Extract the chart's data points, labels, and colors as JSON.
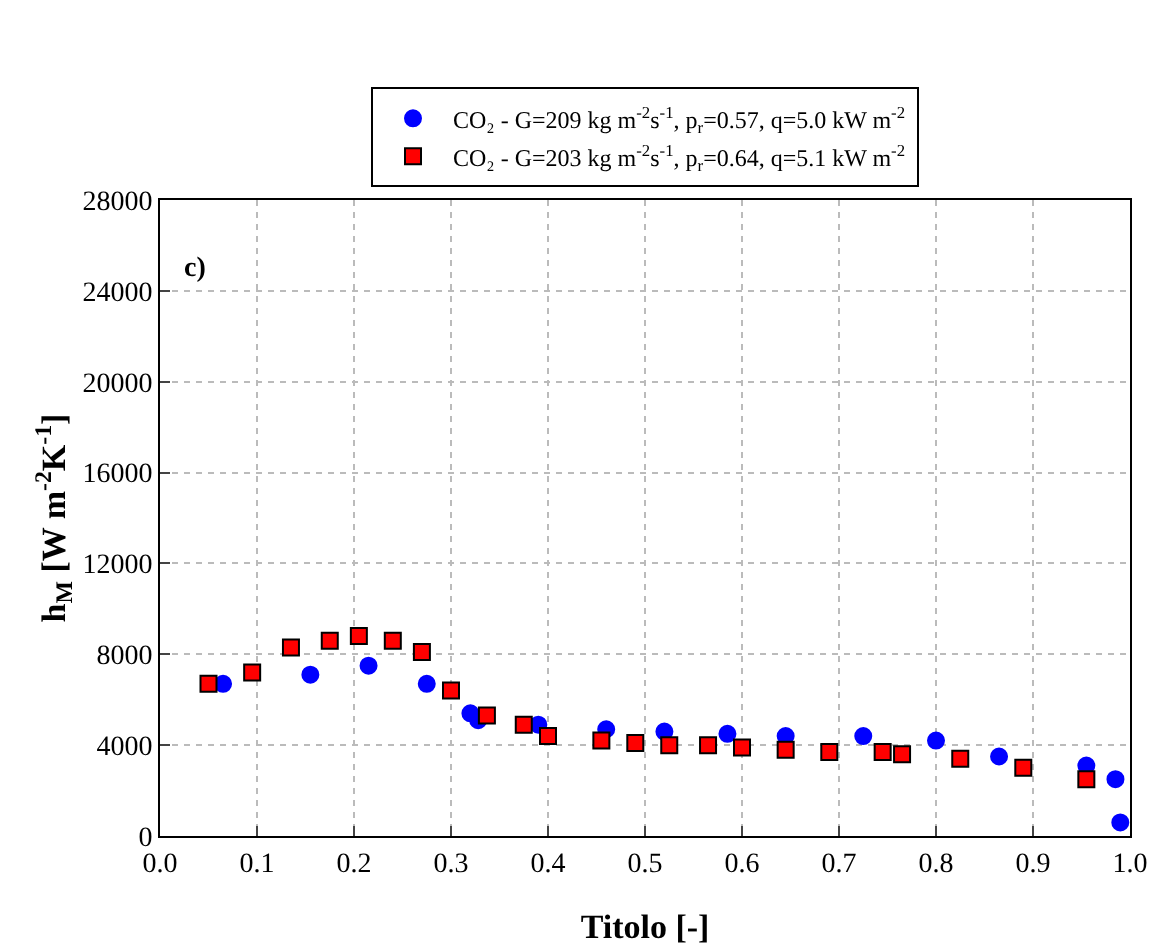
{
  "chart_data": {
    "type": "scatter",
    "xlabel": "Titolo [-]",
    "ylabel": "h$_{M}$ [W m$^{-2}$K$^{-1}$]",
    "annotations": [
      "c)"
    ],
    "series": [
      {
        "name": "CO₂ - G=209 kg m$^{-2}$s$^{-1}$, p$_{r}$=0.57, q=5.0 kW m$^{-2}$",
        "color": "#0000ff",
        "marker": "circle",
        "x": [
          0.065,
          0.155,
          0.215,
          0.275,
          0.32,
          0.328,
          0.39,
          0.46,
          0.52,
          0.585,
          0.645,
          0.725,
          0.8,
          0.865,
          0.955,
          0.985,
          0.99
        ],
        "values": [
          6700,
          7100,
          7500,
          6700,
          5400,
          5100,
          4900,
          4700,
          4600,
          4500,
          4400,
          4400,
          4200,
          3500,
          3100,
          2500,
          600
        ]
      },
      {
        "name": "CO₂ - G=203 kg m$^{-2}$s$^{-1}$, p$_{r}$=0.64, q=5.1 kW m$^{-2}$",
        "color": "#ff0000",
        "marker": "square",
        "x": [
          0.05,
          0.095,
          0.135,
          0.175,
          0.205,
          0.24,
          0.27,
          0.3,
          0.337,
          0.375,
          0.4,
          0.455,
          0.49,
          0.525,
          0.565,
          0.6,
          0.645,
          0.69,
          0.745,
          0.765,
          0.825,
          0.89,
          0.955
        ],
        "values": [
          6700,
          7200,
          8300,
          8600,
          8800,
          8600,
          8100,
          6400,
          5300,
          4900,
          4400,
          4200,
          4100,
          4000,
          4000,
          3900,
          3800,
          3700,
          3700,
          3600,
          3400,
          3000,
          2500
        ]
      }
    ],
    "xlim": [
      0,
      1
    ],
    "xticks": [
      {
        "value": 0,
        "label": "0.0"
      },
      0.1,
      0.2,
      0.3,
      0.4,
      0.5,
      0.6,
      0.7,
      0.8,
      0.9,
      {
        "value": 1,
        "label": "1.0"
      }
    ],
    "ylim": [
      0,
      28000
    ],
    "yticks": [
      0,
      4000,
      8000,
      12000,
      16000,
      20000,
      24000,
      28000
    ],
    "grid": true,
    "legend": "top"
  }
}
